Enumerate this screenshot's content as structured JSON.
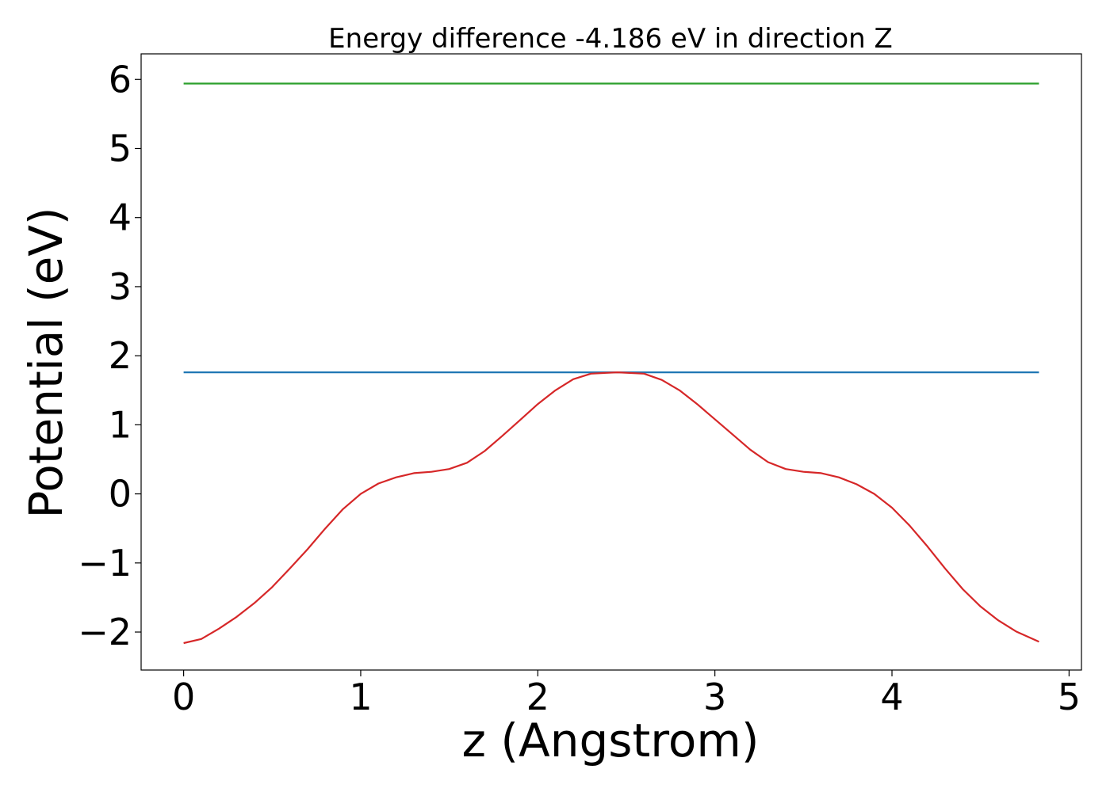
{
  "chart_data": {
    "type": "line",
    "title": "Energy difference -4.186 eV in direction Z",
    "xlabel": "z (Angstrom)",
    "ylabel": "Potential (eV)",
    "xlim": [
      -0.24,
      5.07
    ],
    "ylim": [
      -2.55,
      6.37
    ],
    "xticks": [
      0,
      1,
      2,
      3,
      4,
      5
    ],
    "yticks": [
      -2,
      -1,
      0,
      1,
      2,
      3,
      4,
      5,
      6
    ],
    "xtick_labels": [
      "0",
      "1",
      "2",
      "3",
      "4",
      "5"
    ],
    "ytick_labels": [
      "−2",
      "−1",
      "0",
      "1",
      "2",
      "3",
      "4",
      "5",
      "6"
    ],
    "grid": false,
    "series": [
      {
        "color": "#2ca02c",
        "x": [
          0,
          4.83
        ],
        "y": [
          5.94,
          5.94
        ]
      },
      {
        "color": "#1f77b4",
        "x": [
          0,
          4.83
        ],
        "y": [
          1.76,
          1.76
        ]
      },
      {
        "color": "#d62728",
        "x": [
          0,
          0.1,
          0.2,
          0.3,
          0.4,
          0.5,
          0.6,
          0.7,
          0.8,
          0.9,
          1.0,
          1.1,
          1.2,
          1.3,
          1.4,
          1.5,
          1.6,
          1.7,
          1.8,
          1.9,
          2.0,
          2.1,
          2.2,
          2.3,
          2.45,
          2.6,
          2.7,
          2.8,
          2.9,
          3.0,
          3.1,
          3.2,
          3.3,
          3.4,
          3.5,
          3.6,
          3.7,
          3.8,
          3.9,
          4.0,
          4.1,
          4.2,
          4.3,
          4.4,
          4.5,
          4.6,
          4.7,
          4.83
        ],
        "y": [
          -2.16,
          -2.1,
          -1.95,
          -1.78,
          -1.58,
          -1.35,
          -1.08,
          -0.8,
          -0.5,
          -0.22,
          0.0,
          0.15,
          0.24,
          0.3,
          0.32,
          0.36,
          0.45,
          0.62,
          0.84,
          1.07,
          1.3,
          1.5,
          1.66,
          1.74,
          1.76,
          1.74,
          1.65,
          1.5,
          1.3,
          1.08,
          0.86,
          0.64,
          0.46,
          0.36,
          0.32,
          0.3,
          0.24,
          0.14,
          0.0,
          -0.2,
          -0.46,
          -0.76,
          -1.08,
          -1.38,
          -1.63,
          -1.83,
          -1.99,
          -2.14
        ]
      }
    ]
  }
}
